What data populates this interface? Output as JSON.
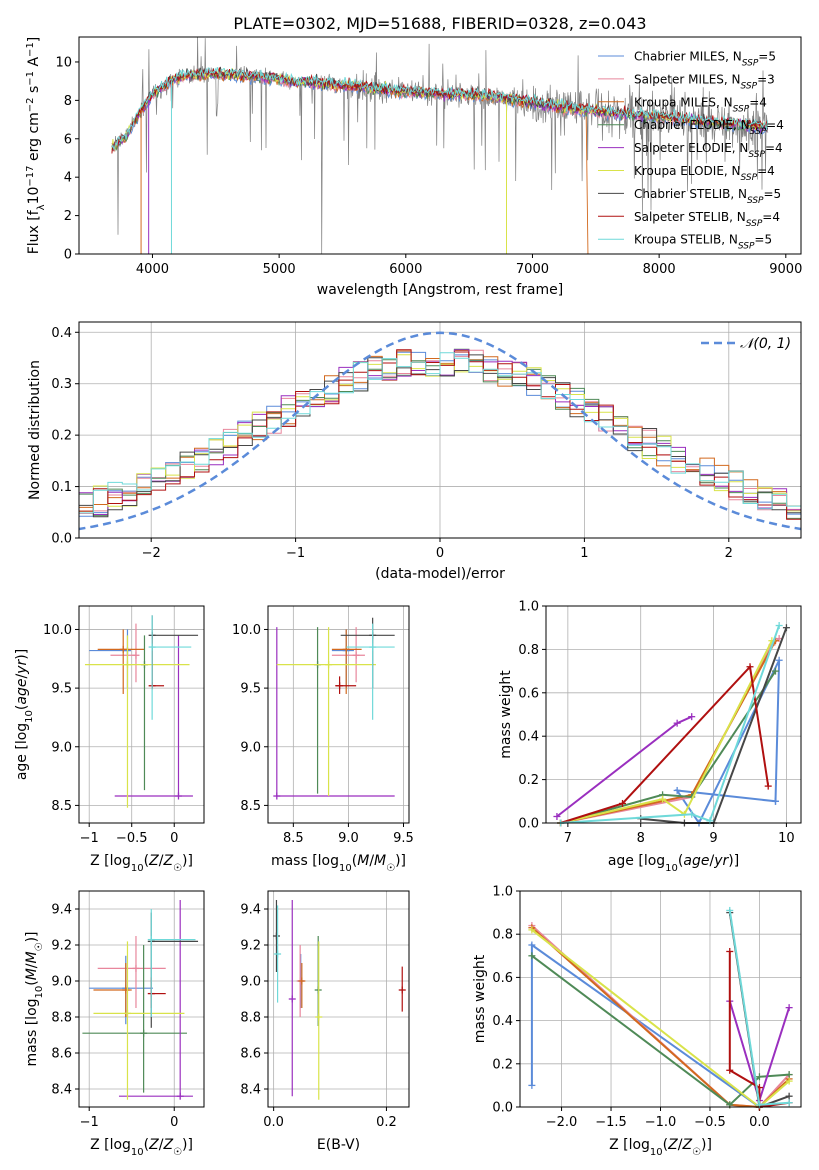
{
  "colors": {
    "Chabrier MILES": "#5b8bd9",
    "Salpeter MILES": "#e8869c",
    "Kroupa MILES": "#d2691e",
    "Chabrier ELODIE": "#4f8a57",
    "Salpeter ELODIE": "#9a2fbf",
    "Kroupa ELODIE": "#d9e34a",
    "Chabrier STELIB": "#474747",
    "Salpeter STELIB": "#b01010",
    "Kroupa STELIB": "#6fd9d9",
    "data": "#808080",
    "gaussian": "#5b8bd9",
    "grid": "#b0b0b0"
  },
  "chart_data": [
    {
      "type": "line",
      "title": "PLATE=0302, MJD=51688, FIBERID=0328, z=0.043",
      "xlabel": "wavelength [Angstrom, rest frame]",
      "ylabel_parts": [
        "Flux [f",
        "λ",
        "10",
        "−17",
        " erg cm",
        "−2",
        " s",
        "−1",
        " A",
        "−1",
        "]"
      ],
      "xlim": [
        3420,
        9120
      ],
      "ylim": [
        0,
        11.3
      ],
      "xticks": [
        "4000",
        "5000",
        "6000",
        "7000",
        "8000",
        "9000"
      ],
      "yticks": [
        "0",
        "2",
        "4",
        "6",
        "8",
        "10"
      ],
      "grid": false,
      "legend_position": "top-right",
      "continuum": {
        "x": [
          3680,
          3800,
          3900,
          4000,
          4100,
          4200,
          4300,
          4500,
          4700,
          4900,
          5100,
          5300,
          5500,
          5800,
          6000,
          6300,
          6500,
          6700,
          6900,
          7100,
          7300,
          7500,
          7700,
          7900,
          8100,
          8300,
          8500,
          8700,
          8850
        ],
        "y": [
          5.5,
          6.2,
          7.4,
          8.3,
          8.8,
          9.2,
          9.3,
          9.4,
          9.3,
          9.2,
          9.0,
          8.9,
          8.8,
          8.6,
          8.45,
          8.35,
          8.3,
          8.2,
          8.0,
          7.8,
          7.6,
          7.45,
          7.3,
          7.2,
          7.1,
          6.9,
          6.8,
          6.7,
          6.6
        ]
      },
      "series": [
        {
          "name": "Chabrier MILES",
          "nssp": "5"
        },
        {
          "name": "Salpeter MILES",
          "nssp": "3"
        },
        {
          "name": "Kroupa MILES",
          "nssp": "4"
        },
        {
          "name": "Chabrier ELODIE",
          "nssp": "4"
        },
        {
          "name": "Salpeter ELODIE",
          "nssp": "4"
        },
        {
          "name": "Kroupa ELODIE",
          "nssp": "4"
        },
        {
          "name": "Chabrier STELIB",
          "nssp": "5"
        },
        {
          "name": "Salpeter STELIB",
          "nssp": "4"
        },
        {
          "name": "Kroupa STELIB",
          "nssp": "5"
        }
      ]
    },
    {
      "type": "line",
      "xlabel": "(data-model)/error",
      "ylabel": "Normed distribution",
      "xlim": [
        -2.5,
        2.5
      ],
      "ylim": [
        0,
        0.42
      ],
      "xticks": [
        -2,
        -1,
        0,
        1,
        2
      ],
      "yticks": [
        0.0,
        0.1,
        0.2,
        0.3,
        0.4
      ],
      "grid": true,
      "legend_position": "top-right",
      "gaussian_label": "𝒩(0, 1)",
      "bin_width": 0.1
    },
    {
      "type": "scatter",
      "xlabel": "Z [log10(Z/Z☉)]",
      "ylabel": "age  [log10(age/yr)]",
      "xlim": [
        -1.12,
        0.35
      ],
      "ylim": [
        8.35,
        10.2
      ],
      "xticks": [
        -1,
        -0.5,
        0
      ],
      "xticklabels": [
        "−1",
        "−0.5",
        "0"
      ],
      "yticks": [
        8.5,
        9.0,
        9.5,
        10.0
      ],
      "yticklabels": [
        "8.5",
        "9.0",
        "9.5",
        "10.0"
      ],
      "grid": true,
      "points": [
        {
          "s": "Chabrier MILES",
          "x": -0.55,
          "xe": [
            -1.0,
            -0.55
          ],
          "y": 9.82,
          "ye": [
            9.5,
            10.0
          ]
        },
        {
          "s": "Salpeter MILES",
          "x": -0.45,
          "xe": [
            -0.75,
            -0.45
          ],
          "y": 9.78,
          "ye": [
            9.55,
            10.05
          ]
        },
        {
          "s": "Kroupa MILES",
          "x": -0.6,
          "xe": [
            -0.9,
            -0.35
          ],
          "y": 9.83,
          "ye": [
            9.45,
            10.0
          ]
        },
        {
          "s": "Chabrier ELODIE",
          "x": -0.35,
          "xe": [
            -0.35,
            -0.35
          ],
          "y": 9.7,
          "ye": [
            8.63,
            9.95
          ]
        },
        {
          "s": "Salpeter ELODIE",
          "x": 0.05,
          "xe": [
            -0.7,
            0.22
          ],
          "y": 8.58,
          "ye": [
            8.58,
            9.95
          ]
        },
        {
          "s": "Kroupa ELODIE",
          "x": -0.55,
          "xe": [
            -1.05,
            0.18
          ],
          "y": 9.7,
          "ye": [
            8.48,
            9.95
          ]
        },
        {
          "s": "Chabrier STELIB",
          "x": -0.26,
          "xe": [
            -0.26,
            0.28
          ],
          "y": 9.95,
          "ye": [
            9.5,
            10.12
          ]
        },
        {
          "s": "Salpeter STELIB",
          "x": -0.26,
          "xe": [
            -0.26,
            -0.12
          ],
          "y": 9.52,
          "ye": [
            9.52,
            9.95
          ]
        },
        {
          "s": "Kroupa STELIB",
          "x": -0.26,
          "xe": [
            -0.26,
            0.2
          ],
          "y": 9.85,
          "ye": [
            9.23,
            10.12
          ]
        }
      ]
    },
    {
      "type": "scatter",
      "xlabel": "mass [log10(M/M☉)]",
      "ylabel": "",
      "xlim": [
        8.27,
        9.55
      ],
      "ylim": [
        8.35,
        10.2
      ],
      "xticks": [
        8.5,
        9.0,
        9.5
      ],
      "xticklabels": [
        "8.5",
        "9.0",
        "9.5"
      ],
      "yticks": [
        8.5,
        9.0,
        9.5,
        10.0
      ],
      "yticklabels": [
        "8.5",
        "9.0",
        "9.5",
        "10.0"
      ],
      "grid": true,
      "points": [
        {
          "s": "Chabrier MILES",
          "x": 8.98,
          "xe": [
            8.85,
            9.05
          ],
          "y": 9.82,
          "ye": [
            9.5,
            10.0
          ]
        },
        {
          "s": "Salpeter MILES",
          "x": 9.07,
          "xe": [
            8.85,
            9.15
          ],
          "y": 9.78,
          "ye": [
            9.55,
            10.02
          ]
        },
        {
          "s": "Kroupa MILES",
          "x": 8.98,
          "xe": [
            8.85,
            9.12
          ],
          "y": 9.83,
          "ye": [
            9.45,
            10.0
          ]
        },
        {
          "s": "Chabrier ELODIE",
          "x": 8.72,
          "xe": [
            8.72,
            8.72
          ],
          "y": 9.7,
          "ye": [
            8.6,
            10.02
          ]
        },
        {
          "s": "Salpeter ELODIE",
          "x": 8.35,
          "xe": [
            8.35,
            9.42
          ],
          "y": 8.58,
          "ye": [
            8.58,
            10.02
          ]
        },
        {
          "s": "Kroupa ELODIE",
          "x": 8.82,
          "xe": [
            8.35,
            9.25
          ],
          "y": 9.7,
          "ye": [
            8.58,
            10.02
          ]
        },
        {
          "s": "Chabrier STELIB",
          "x": 9.22,
          "xe": [
            8.93,
            9.42
          ],
          "y": 9.95,
          "ye": [
            9.5,
            10.1
          ]
        },
        {
          "s": "Salpeter STELIB",
          "x": 8.92,
          "xe": [
            8.88,
            9.07
          ],
          "y": 9.52,
          "ye": [
            9.45,
            9.6
          ]
        },
        {
          "s": "Kroupa STELIB",
          "x": 9.22,
          "xe": [
            8.98,
            9.42
          ],
          "y": 9.85,
          "ye": [
            9.23,
            10.05
          ]
        }
      ]
    },
    {
      "type": "line",
      "xlabel": "age  [log10(age/yr)]",
      "ylabel": "mass weight",
      "xlim": [
        6.7,
        10.2
      ],
      "ylim": [
        0,
        1.0
      ],
      "xticks": [
        7,
        8,
        9,
        10
      ],
      "yticks": [
        0.0,
        0.2,
        0.4,
        0.6,
        0.8,
        1.0
      ],
      "grid": true,
      "series": [
        {
          "s": "Chabrier MILES",
          "x": [
            9.85,
            8.5,
            8.8,
            9.9,
            9.85
          ],
          "y": [
            0.1,
            0.15,
            0.0,
            0.75,
            0.1
          ]
        },
        {
          "s": "Salpeter MILES",
          "x": [
            6.9,
            8.7,
            9.8,
            9.9
          ],
          "y": [
            0.0,
            0.12,
            0.82,
            0.85
          ]
        },
        {
          "s": "Kroupa MILES",
          "x": [
            6.9,
            8.7,
            9.85
          ],
          "y": [
            0.0,
            0.13,
            0.84
          ]
        },
        {
          "s": "Chabrier ELODIE",
          "x": [
            6.9,
            8.3,
            8.7,
            9.85
          ],
          "y": [
            0.0,
            0.13,
            0.12,
            0.7
          ]
        },
        {
          "s": "Salpeter ELODIE",
          "x": [
            6.85,
            8.5,
            8.7
          ],
          "y": [
            0.03,
            0.46,
            0.49
          ]
        },
        {
          "s": "Kroupa ELODIE",
          "x": [
            6.9,
            8.3,
            8.6,
            9.8
          ],
          "y": [
            0.0,
            0.11,
            0.04,
            0.84
          ]
        },
        {
          "s": "Chabrier STELIB",
          "x": [
            8.0,
            8.6,
            9.0,
            10.0
          ],
          "y": [
            0.02,
            0.0,
            0.0,
            0.9
          ]
        },
        {
          "s": "Salpeter STELIB",
          "x": [
            6.9,
            7.75,
            9.5,
            9.75
          ],
          "y": [
            0.0,
            0.09,
            0.72,
            0.17
          ]
        },
        {
          "s": "Kroupa STELIB",
          "x": [
            6.9,
            8.7,
            8.95,
            9.9
          ],
          "y": [
            0.0,
            0.04,
            0.01,
            0.91
          ]
        }
      ]
    },
    {
      "type": "scatter",
      "xlabel": "Z [log10(Z/Z☉)]",
      "ylabel": "mass [log10(M/M☉)]",
      "xlim": [
        -1.12,
        0.35
      ],
      "ylim": [
        8.3,
        9.5
      ],
      "xticks": [
        -1,
        0
      ],
      "xticklabels": [
        "−1",
        "0"
      ],
      "yticks": [
        8.4,
        8.6,
        8.8,
        9.0,
        9.2,
        9.4
      ],
      "yticklabels": [
        "8.4",
        "8.6",
        "8.8",
        "9.0",
        "9.2",
        "9.4"
      ],
      "grid": true,
      "points": [
        {
          "s": "Chabrier MILES",
          "x": -0.57,
          "xe": [
            -1.0,
            -0.25
          ],
          "y": 8.96,
          "ye": [
            8.76,
            9.14
          ]
        },
        {
          "s": "Salpeter MILES",
          "x": -0.45,
          "xe": [
            -0.9,
            -0.1
          ],
          "y": 9.07,
          "ye": [
            8.85,
            9.25
          ]
        },
        {
          "s": "Kroupa MILES",
          "x": -0.57,
          "xe": [
            -0.95,
            -0.5
          ],
          "y": 8.95,
          "ye": [
            8.8,
            9.1
          ]
        },
        {
          "s": "Chabrier ELODIE",
          "x": -0.36,
          "xe": [
            -1.08,
            0.15
          ],
          "y": 8.71,
          "ye": [
            8.38,
            9.2
          ]
        },
        {
          "s": "Salpeter ELODIE",
          "x": 0.07,
          "xe": [
            -0.65,
            0.22
          ],
          "y": 8.36,
          "ye": [
            8.36,
            9.45
          ]
        },
        {
          "s": "Kroupa ELODIE",
          "x": -0.55,
          "xe": [
            -0.95,
            0.12
          ],
          "y": 8.82,
          "ye": [
            8.34,
            9.22
          ]
        },
        {
          "s": "Chabrier STELIB",
          "x": -0.27,
          "xe": [
            -0.27,
            0.28
          ],
          "y": 9.22,
          "ye": [
            8.74,
            9.38
          ]
        },
        {
          "s": "Salpeter STELIB",
          "x": -0.27,
          "xe": [
            -0.27,
            -0.1
          ],
          "y": 8.93,
          "ye": [
            8.85,
            9.02
          ]
        },
        {
          "s": "Kroupa STELIB",
          "x": -0.27,
          "xe": [
            -0.27,
            0.25
          ],
          "y": 9.23,
          "ye": [
            8.8,
            9.4
          ]
        }
      ]
    },
    {
      "type": "scatter",
      "xlabel": "E(B-V)",
      "ylabel": "",
      "xlim": [
        -0.01,
        0.24
      ],
      "ylim": [
        8.3,
        9.5
      ],
      "xticks": [
        0.0,
        0.2
      ],
      "xticklabels": [
        "0.0",
        "0.2"
      ],
      "yticks": [
        8.4,
        8.6,
        8.8,
        9.0,
        9.2,
        9.4
      ],
      "yticklabels": [
        "8.4",
        "8.6",
        "8.8",
        "9.0",
        "9.2",
        "9.4"
      ],
      "grid": true,
      "points": [
        {
          "s": "Chabrier MILES",
          "x": 0.048,
          "y": 9.0,
          "ye": [
            8.85,
            9.15
          ]
        },
        {
          "s": "Salpeter MILES",
          "x": 0.047,
          "y": 9.0,
          "ye": [
            8.8,
            9.2
          ]
        },
        {
          "s": "Kroupa MILES",
          "x": 0.05,
          "y": 9.0,
          "ye": [
            8.85,
            9.1
          ]
        },
        {
          "s": "Chabrier ELODIE",
          "x": 0.079,
          "y": 8.95,
          "ye": [
            8.75,
            9.25
          ]
        },
        {
          "s": "Salpeter ELODIE",
          "x": 0.033,
          "y": 8.9,
          "ye": [
            8.36,
            9.45
          ]
        },
        {
          "s": "Kroupa ELODIE",
          "x": 0.08,
          "y": 8.8,
          "ye": [
            8.34,
            9.22
          ]
        },
        {
          "s": "Chabrier STELIB",
          "x": 0.005,
          "y": 9.25,
          "ye": [
            9.05,
            9.45
          ]
        },
        {
          "s": "Salpeter STELIB",
          "x": 0.228,
          "y": 8.95,
          "ye": [
            8.83,
            9.08
          ]
        },
        {
          "s": "Kroupa STELIB",
          "x": 0.007,
          "y": 9.15,
          "ye": [
            8.88,
            9.42
          ]
        }
      ]
    },
    {
      "type": "line",
      "xlabel": "Z [log10(Z/Z☉)]",
      "ylabel": "mass weight",
      "xlim": [
        -2.42,
        0.42
      ],
      "ylim": [
        0,
        1.0
      ],
      "xticks": [
        -2.0,
        -1.5,
        -1.0,
        -0.5,
        0.0
      ],
      "xticklabels": [
        "−2.0",
        "−1.5",
        "−1.0",
        "−0.5",
        "0.0"
      ],
      "yticks": [
        0.0,
        0.2,
        0.4,
        0.6,
        0.8,
        1.0
      ],
      "grid": true,
      "series": [
        {
          "s": "Chabrier MILES",
          "x": [
            -2.3,
            -2.3,
            0.0
          ],
          "y": [
            0.1,
            0.75,
            0.0
          ]
        },
        {
          "s": "Salpeter MILES",
          "x": [
            -2.3,
            -0.3,
            0.0,
            0.3
          ],
          "y": [
            0.84,
            0.01,
            0.0,
            0.15
          ]
        },
        {
          "s": "Kroupa MILES",
          "x": [
            -2.3,
            -0.3,
            0.0,
            0.3
          ],
          "y": [
            0.83,
            0.01,
            0.0,
            0.13
          ]
        },
        {
          "s": "Chabrier ELODIE",
          "x": [
            -2.3,
            -0.3,
            0.0,
            0.3
          ],
          "y": [
            0.7,
            0.01,
            0.14,
            0.15
          ]
        },
        {
          "s": "Salpeter ELODIE",
          "x": [
            -0.3,
            0.0,
            0.3
          ],
          "y": [
            0.49,
            0.03,
            0.46
          ]
        },
        {
          "s": "Kroupa ELODIE",
          "x": [
            -2.3,
            0.0,
            0.3
          ],
          "y": [
            0.82,
            0.0,
            0.12
          ]
        },
        {
          "s": "Chabrier STELIB",
          "x": [
            -0.3,
            0.0,
            0.3
          ],
          "y": [
            0.9,
            0.0,
            0.05
          ]
        },
        {
          "s": "Salpeter STELIB",
          "x": [
            -0.3,
            -0.3,
            0.0,
            0.0,
            0.3
          ],
          "y": [
            0.72,
            0.17,
            0.09,
            0.0,
            0.02
          ]
        },
        {
          "s": "Kroupa STELIB",
          "x": [
            -0.3,
            0.0,
            0.3
          ],
          "y": [
            0.91,
            0.01,
            0.02
          ]
        }
      ]
    }
  ]
}
